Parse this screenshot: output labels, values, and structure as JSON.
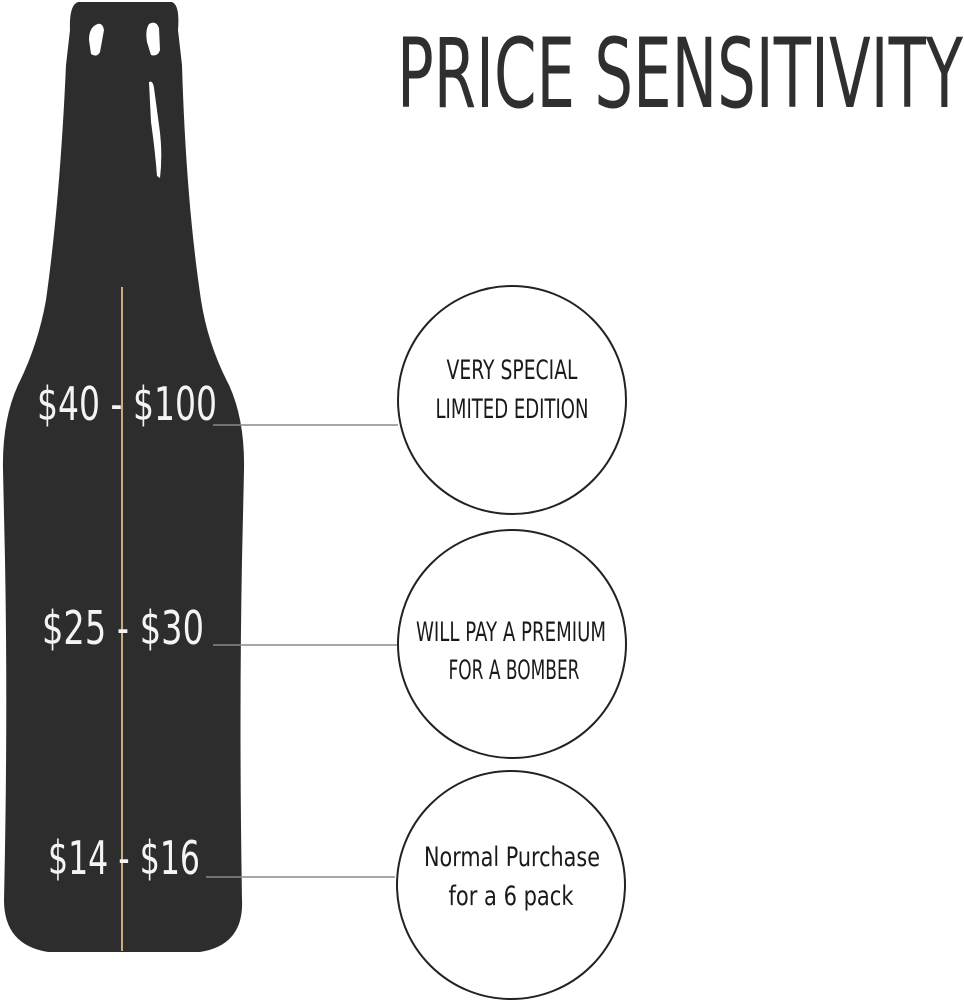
{
  "title": "PRICE SENSITIVITY",
  "colors": {
    "bottle": "#2d2d2d",
    "title": "#2f2f2f",
    "price_text": "#f4f4f4",
    "tan_line": "#c8ab83",
    "connector": "#8a8a8a",
    "circle_stroke": "#222222",
    "circle_text": "#1a1a1a"
  },
  "tiers": [
    {
      "price": "$40 - $100",
      "lines": [
        "VERY SPECIAL",
        "LIMITED EDITION"
      ]
    },
    {
      "price": "$25 - $30",
      "lines": [
        "WILL PAY A PREMIUM",
        "FOR A BOMBER"
      ]
    },
    {
      "price": "$14 - $16",
      "lines": [
        "Normal Purchase",
        "for a 6 pack"
      ]
    }
  ]
}
